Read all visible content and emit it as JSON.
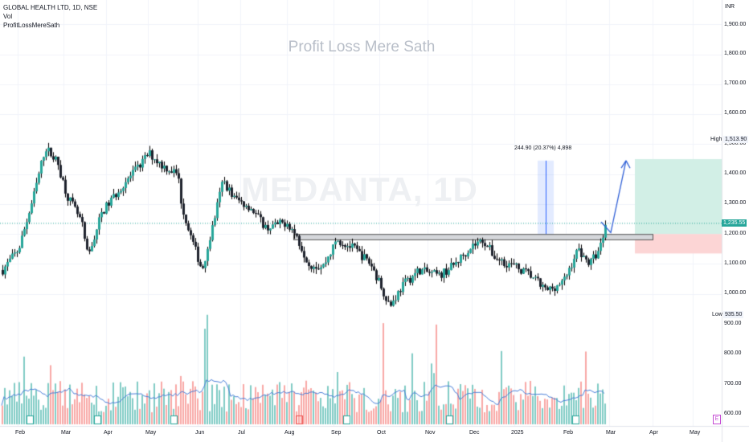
{
  "header": {
    "symbol_line": "GLOBAL HEALTH LTD, 1D, NSE",
    "vol_label": "Vol",
    "indicator_label": "ProfitLossMereSath"
  },
  "watermark": "Profit Loss Mere Sath",
  "symbol_watermark": "MEDANTA, 1D",
  "currency": "INR",
  "price_axis": {
    "ticks": [
      "1,900.00",
      "1,800.00",
      "1,700.00",
      "1,600.00",
      "1,500.00",
      "1,400.00",
      "1,300.00",
      "1,200.00",
      "1,100.00",
      "1,000.00"
    ],
    "high_label": "High",
    "high_value": "1,513.90",
    "low_label": "Low",
    "low_value": "935.50",
    "last_price": "1,235.55"
  },
  "volume_axis": {
    "ticks": [
      "900.00",
      "800.00",
      "700.00",
      "600.00"
    ]
  },
  "time_axis": {
    "labels": [
      "Feb",
      "Mar",
      "Apr",
      "May",
      "Jun",
      "Jul",
      "Aug",
      "Sep",
      "Oct",
      "Nov",
      "Dec",
      "2025",
      "Feb",
      "Mar",
      "Apr",
      "May"
    ]
  },
  "measure_label": "244.90 (20.37%) 4,898",
  "event_marker": "E",
  "colors": {
    "up": "#26a69a",
    "down": "#ef5350",
    "vol_up": "#80cbc4",
    "vol_down": "#f8a8a6",
    "ma": "#4a7fd8",
    "target_zone": "#d2efe6",
    "stop_zone": "#fcd5d5",
    "arrow": "#2f5fd6"
  },
  "chart_data": {
    "type": "candlestick",
    "price_range": [
      900,
      1950
    ],
    "high": 1513.9,
    "low": 935.5,
    "last": 1235.55,
    "support_zone": [
      1180,
      1200
    ],
    "target_zone": [
      1200,
      1450
    ],
    "stop_zone": [
      1135,
      1200
    ],
    "measure": {
      "from": 1200,
      "to": 1445,
      "change": 244.9,
      "percent": 20.37,
      "bars": 4898
    },
    "monthly_closes": [
      {
        "month": "Feb",
        "close": 1110
      },
      {
        "month": "Mar",
        "close": 1360
      },
      {
        "month": "Apr",
        "close": 1260
      },
      {
        "month": "May",
        "close": 1430
      },
      {
        "month": "Jun",
        "close": 1150
      },
      {
        "month": "Jul",
        "close": 1330
      },
      {
        "month": "Aug",
        "close": 1200
      },
      {
        "month": "Sep",
        "close": 1120
      },
      {
        "month": "Oct",
        "close": 1000
      },
      {
        "month": "Nov",
        "close": 1090
      },
      {
        "month": "Dec",
        "close": 1150
      },
      {
        "month": "2025",
        "close": 1090
      },
      {
        "month": "Feb",
        "close": 1235
      }
    ]
  }
}
